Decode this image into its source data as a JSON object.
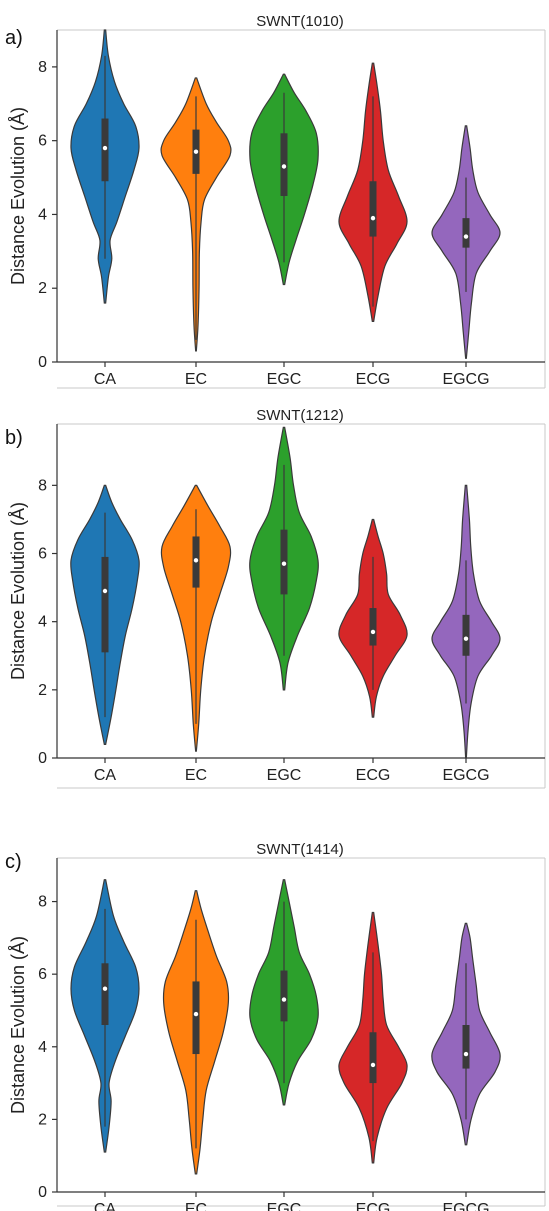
{
  "chart_data": [
    {
      "type": "violin",
      "panel_label": "a)",
      "title": "SWNT(1010)",
      "ylabel": "Distance Evolution (Å)",
      "xlabel": "",
      "ylim": [
        0,
        9.0
      ],
      "yticks": [
        0,
        2,
        4,
        6,
        8
      ],
      "categories": [
        "CA",
        "EC",
        "EGC",
        "ECG",
        "EGCG"
      ],
      "colors": [
        "#1f77b4",
        "#ff7f0e",
        "#2ca02c",
        "#d62728",
        "#9467bd"
      ],
      "series": [
        {
          "extent": [
            1.6,
            9.0
          ],
          "q1": 4.9,
          "median": 5.8,
          "q3": 6.6,
          "whisker": [
            2.8,
            8.3
          ],
          "profile": [
            [
              1.6,
              0.02
            ],
            [
              2.3,
              0.1
            ],
            [
              2.8,
              0.2
            ],
            [
              3.3,
              0.15
            ],
            [
              3.8,
              0.35
            ],
            [
              4.5,
              0.6
            ],
            [
              5.2,
              0.85
            ],
            [
              5.8,
              1.0
            ],
            [
              6.4,
              0.9
            ],
            [
              7.0,
              0.55
            ],
            [
              7.6,
              0.28
            ],
            [
              8.3,
              0.1
            ],
            [
              9.0,
              0.02
            ]
          ]
        },
        {
          "extent": [
            0.3,
            7.7
          ],
          "q1": 5.1,
          "median": 5.7,
          "q3": 6.3,
          "whisker": [
            0.6,
            7.2
          ],
          "profile": [
            [
              0.3,
              0.01
            ],
            [
              1.0,
              0.06
            ],
            [
              2.0,
              0.09
            ],
            [
              3.0,
              0.1
            ],
            [
              3.8,
              0.15
            ],
            [
              4.4,
              0.25
            ],
            [
              5.0,
              0.6
            ],
            [
              5.6,
              1.0
            ],
            [
              6.0,
              0.95
            ],
            [
              6.5,
              0.6
            ],
            [
              7.0,
              0.3
            ],
            [
              7.7,
              0.02
            ]
          ]
        },
        {
          "extent": [
            2.1,
            7.8
          ],
          "q1": 4.5,
          "median": 5.3,
          "q3": 6.2,
          "whisker": [
            2.7,
            7.3
          ],
          "profile": [
            [
              2.1,
              0.02
            ],
            [
              2.7,
              0.15
            ],
            [
              3.3,
              0.35
            ],
            [
              4.0,
              0.6
            ],
            [
              4.8,
              0.85
            ],
            [
              5.5,
              1.0
            ],
            [
              6.2,
              0.95
            ],
            [
              6.8,
              0.65
            ],
            [
              7.3,
              0.3
            ],
            [
              7.8,
              0.02
            ]
          ]
        },
        {
          "extent": [
            1.1,
            8.1
          ],
          "q1": 3.4,
          "median": 3.9,
          "q3": 4.9,
          "whisker": [
            1.5,
            7.2
          ],
          "profile": [
            [
              1.1,
              0.02
            ],
            [
              1.8,
              0.15
            ],
            [
              2.6,
              0.35
            ],
            [
              3.2,
              0.7
            ],
            [
              3.8,
              1.0
            ],
            [
              4.5,
              0.75
            ],
            [
              5.2,
              0.45
            ],
            [
              6.0,
              0.3
            ],
            [
              6.8,
              0.22
            ],
            [
              7.5,
              0.12
            ],
            [
              8.1,
              0.02
            ]
          ]
        },
        {
          "extent": [
            0.1,
            6.4
          ],
          "q1": 3.1,
          "median": 3.4,
          "q3": 3.9,
          "whisker": [
            1.9,
            5.0
          ],
          "profile": [
            [
              0.1,
              0.01
            ],
            [
              0.8,
              0.08
            ],
            [
              1.6,
              0.16
            ],
            [
              2.4,
              0.3
            ],
            [
              3.0,
              0.7
            ],
            [
              3.5,
              1.0
            ],
            [
              4.0,
              0.7
            ],
            [
              4.6,
              0.35
            ],
            [
              5.2,
              0.2
            ],
            [
              5.8,
              0.12
            ],
            [
              6.4,
              0.02
            ]
          ]
        }
      ]
    },
    {
      "type": "violin",
      "panel_label": "b)",
      "title": "SWNT(1212)",
      "ylabel": "Distance Evolution (Å)",
      "xlabel": "",
      "ylim": [
        0,
        9.8
      ],
      "yticks": [
        0,
        2,
        4,
        6,
        8
      ],
      "categories": [
        "CA",
        "EC",
        "EGC",
        "ECG",
        "EGCG"
      ],
      "colors": [
        "#1f77b4",
        "#ff7f0e",
        "#2ca02c",
        "#d62728",
        "#9467bd"
      ],
      "series": [
        {
          "extent": [
            0.4,
            8.0
          ],
          "q1": 3.1,
          "median": 4.9,
          "q3": 5.9,
          "whisker": [
            1.2,
            7.2
          ],
          "profile": [
            [
              0.4,
              0.02
            ],
            [
              1.2,
              0.18
            ],
            [
              2.0,
              0.32
            ],
            [
              2.8,
              0.45
            ],
            [
              3.6,
              0.6
            ],
            [
              4.4,
              0.8
            ],
            [
              5.2,
              0.95
            ],
            [
              5.8,
              1.0
            ],
            [
              6.4,
              0.8
            ],
            [
              7.0,
              0.45
            ],
            [
              7.5,
              0.2
            ],
            [
              8.0,
              0.02
            ]
          ]
        },
        {
          "extent": [
            0.2,
            8.0
          ],
          "q1": 5.0,
          "median": 5.8,
          "q3": 6.5,
          "whisker": [
            1.0,
            7.3
          ],
          "profile": [
            [
              0.2,
              0.01
            ],
            [
              1.0,
              0.08
            ],
            [
              2.0,
              0.14
            ],
            [
              3.0,
              0.25
            ],
            [
              4.0,
              0.45
            ],
            [
              4.8,
              0.7
            ],
            [
              5.6,
              0.95
            ],
            [
              6.2,
              1.0
            ],
            [
              6.8,
              0.7
            ],
            [
              7.4,
              0.35
            ],
            [
              8.0,
              0.02
            ]
          ]
        },
        {
          "extent": [
            2.0,
            9.7
          ],
          "q1": 4.8,
          "median": 5.7,
          "q3": 6.7,
          "whisker": [
            3.0,
            8.6
          ],
          "profile": [
            [
              2.0,
              0.02
            ],
            [
              2.8,
              0.12
            ],
            [
              3.6,
              0.4
            ],
            [
              4.4,
              0.75
            ],
            [
              5.2,
              0.95
            ],
            [
              5.8,
              1.0
            ],
            [
              6.5,
              0.8
            ],
            [
              7.2,
              0.45
            ],
            [
              8.0,
              0.28
            ],
            [
              8.8,
              0.18
            ],
            [
              9.7,
              0.02
            ]
          ]
        },
        {
          "extent": [
            1.2,
            7.0
          ],
          "q1": 3.3,
          "median": 3.7,
          "q3": 4.4,
          "whisker": [
            2.0,
            5.9
          ],
          "profile": [
            [
              1.2,
              0.02
            ],
            [
              1.8,
              0.1
            ],
            [
              2.4,
              0.3
            ],
            [
              3.0,
              0.65
            ],
            [
              3.6,
              1.0
            ],
            [
              4.2,
              0.8
            ],
            [
              4.8,
              0.45
            ],
            [
              5.4,
              0.4
            ],
            [
              6.0,
              0.3
            ],
            [
              6.5,
              0.15
            ],
            [
              7.0,
              0.02
            ]
          ]
        },
        {
          "extent": [
            0.0,
            8.0
          ],
          "q1": 3.0,
          "median": 3.5,
          "q3": 4.2,
          "whisker": [
            1.6,
            5.8
          ],
          "profile": [
            [
              0.0,
              0.01
            ],
            [
              0.8,
              0.06
            ],
            [
              1.6,
              0.15
            ],
            [
              2.4,
              0.35
            ],
            [
              3.0,
              0.75
            ],
            [
              3.5,
              1.0
            ],
            [
              4.0,
              0.75
            ],
            [
              4.6,
              0.4
            ],
            [
              5.4,
              0.22
            ],
            [
              6.2,
              0.14
            ],
            [
              7.0,
              0.1
            ],
            [
              8.0,
              0.02
            ]
          ]
        }
      ]
    },
    {
      "type": "violin",
      "panel_label": "c)",
      "title": "SWNT(1414)",
      "ylabel": "Distance Evolution (Å)",
      "xlabel": "",
      "ylim": [
        0,
        9.2
      ],
      "yticks": [
        0,
        2,
        4,
        6,
        8
      ],
      "categories": [
        "CA",
        "EC",
        "EGC",
        "ECG",
        "EGCG"
      ],
      "colors": [
        "#1f77b4",
        "#ff7f0e",
        "#2ca02c",
        "#d62728",
        "#9467bd"
      ],
      "series": [
        {
          "extent": [
            1.1,
            8.6
          ],
          "q1": 4.6,
          "median": 5.6,
          "q3": 6.3,
          "whisker": [
            1.8,
            7.8
          ],
          "profile": [
            [
              1.1,
              0.02
            ],
            [
              1.8,
              0.12
            ],
            [
              2.5,
              0.18
            ],
            [
              3.0,
              0.12
            ],
            [
              3.6,
              0.3
            ],
            [
              4.3,
              0.6
            ],
            [
              5.0,
              0.9
            ],
            [
              5.6,
              1.0
            ],
            [
              6.2,
              0.9
            ],
            [
              6.9,
              0.55
            ],
            [
              7.6,
              0.25
            ],
            [
              8.6,
              0.02
            ]
          ]
        },
        {
          "extent": [
            0.5,
            8.3
          ],
          "q1": 3.8,
          "median": 4.9,
          "q3": 5.8,
          "whisker": [
            1.2,
            7.5
          ],
          "profile": [
            [
              0.5,
              0.02
            ],
            [
              1.2,
              0.12
            ],
            [
              2.0,
              0.2
            ],
            [
              2.8,
              0.3
            ],
            [
              3.6,
              0.55
            ],
            [
              4.4,
              0.8
            ],
            [
              5.2,
              0.95
            ],
            [
              5.8,
              0.9
            ],
            [
              6.5,
              0.6
            ],
            [
              7.2,
              0.35
            ],
            [
              7.8,
              0.15
            ],
            [
              8.3,
              0.02
            ]
          ]
        },
        {
          "extent": [
            2.4,
            8.6
          ],
          "q1": 4.7,
          "median": 5.3,
          "q3": 6.1,
          "whisker": [
            3.0,
            8.0
          ],
          "profile": [
            [
              2.4,
              0.02
            ],
            [
              3.0,
              0.15
            ],
            [
              3.6,
              0.4
            ],
            [
              4.2,
              0.8
            ],
            [
              4.8,
              1.0
            ],
            [
              5.4,
              0.95
            ],
            [
              6.0,
              0.75
            ],
            [
              6.6,
              0.45
            ],
            [
              7.3,
              0.3
            ],
            [
              8.0,
              0.15
            ],
            [
              8.6,
              0.02
            ]
          ]
        },
        {
          "extent": [
            0.8,
            7.7
          ],
          "q1": 3.0,
          "median": 3.5,
          "q3": 4.4,
          "whisker": [
            1.4,
            6.6
          ],
          "profile": [
            [
              0.8,
              0.02
            ],
            [
              1.5,
              0.12
            ],
            [
              2.3,
              0.4
            ],
            [
              3.0,
              0.85
            ],
            [
              3.5,
              1.0
            ],
            [
              4.0,
              0.75
            ],
            [
              4.6,
              0.4
            ],
            [
              5.3,
              0.3
            ],
            [
              6.0,
              0.25
            ],
            [
              6.8,
              0.15
            ],
            [
              7.7,
              0.02
            ]
          ]
        },
        {
          "extent": [
            1.3,
            7.4
          ],
          "q1": 3.4,
          "median": 3.8,
          "q3": 4.6,
          "whisker": [
            2.0,
            6.3
          ],
          "profile": [
            [
              1.3,
              0.02
            ],
            [
              2.0,
              0.15
            ],
            [
              2.7,
              0.4
            ],
            [
              3.3,
              0.85
            ],
            [
              3.8,
              1.0
            ],
            [
              4.4,
              0.7
            ],
            [
              5.0,
              0.4
            ],
            [
              5.7,
              0.3
            ],
            [
              6.4,
              0.2
            ],
            [
              7.0,
              0.12
            ],
            [
              7.4,
              0.02
            ]
          ]
        }
      ]
    }
  ]
}
